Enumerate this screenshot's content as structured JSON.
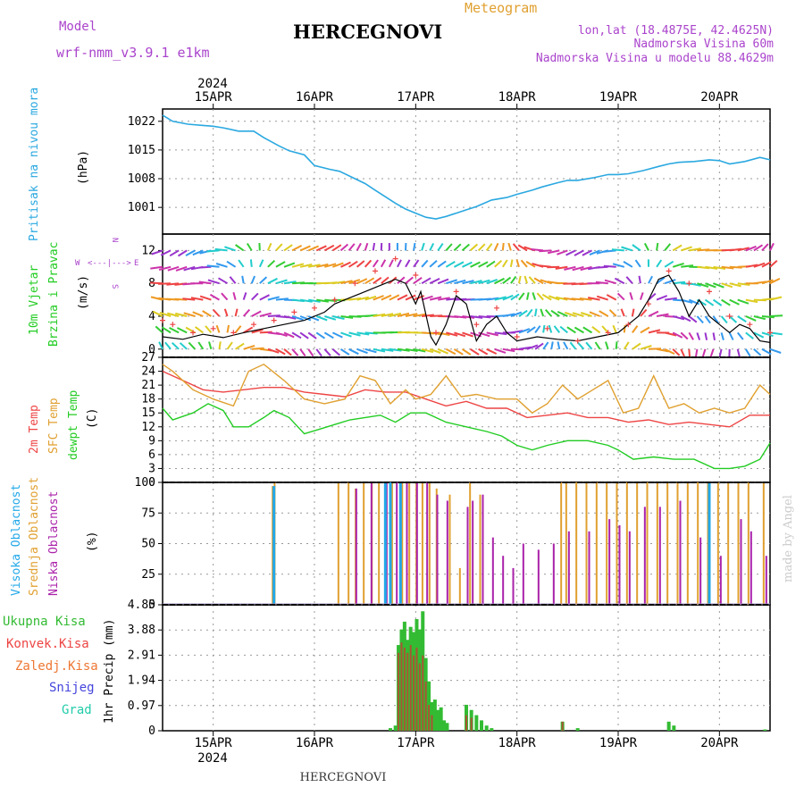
{
  "header": {
    "model_label": "Model",
    "model_name": "wrf-nmm_v3.9.1 e1km",
    "title": "HERCEGNOVI",
    "product": "Meteogram",
    "lonlat": "lon,lat (18.4875E, 42.4625N)",
    "elevation": "Nadmorska Visina 60m",
    "model_elevation": "Nadmorska Visina u modelu 88.4629m",
    "year": "2024",
    "footer_title": "HERCEGNOVI",
    "credit": "made by Angel"
  },
  "colors": {
    "pressure": "#2aa8e0",
    "wind_speed": "#000000",
    "gust": "#ee4444",
    "temp2m": "#ee4444",
    "sfc_temp": "#e0a030",
    "dewpt": "#22cc22",
    "cloud_high": "#22a8e8",
    "cloud_mid": "#e0a030",
    "cloud_low": "#aa22aa",
    "precip_total": "#33bb33",
    "precip_conv": "#ee4444",
    "precip_frozen": "#ee7733",
    "snow": "#4444dd",
    "graupel": "#22ccaa",
    "axis_label_purple": "#aa44cc"
  },
  "chart_data": [
    {
      "panel": "pressure",
      "type": "line",
      "ylabel_left": "Pritisak na nivou mora",
      "ylabel_unit": "(hPa)",
      "yticks": [
        1001,
        1008,
        1015,
        1022
      ],
      "ylim": [
        994.5,
        1025
      ],
      "x_dates": [
        "15APR",
        "16APR",
        "17APR",
        "18APR",
        "19APR",
        "20APR"
      ],
      "x_day_start": 14.5,
      "x_day_end": 20.5,
      "series": [
        {
          "x": [
            14.5,
            14.6,
            14.75,
            14.9,
            15.0,
            15.1,
            15.25,
            15.4,
            15.5,
            15.65,
            15.75,
            15.9,
            16.0,
            16.15,
            16.25,
            16.4,
            16.5,
            16.6,
            16.7,
            16.8,
            16.9,
            17.0,
            17.1,
            17.2,
            17.3,
            17.4,
            17.5,
            17.6,
            17.75,
            17.9,
            18.0,
            18.15,
            18.25,
            18.4,
            18.5,
            18.6,
            18.75,
            18.9,
            19.0,
            19.1,
            19.25,
            19.4,
            19.5,
            19.6,
            19.75,
            19.9,
            20.0,
            20.1,
            20.25,
            20.4,
            20.5
          ],
          "values": [
            1023.5,
            1022,
            1021.3,
            1021,
            1020.8,
            1020.4,
            1019.6,
            1019.6,
            1018,
            1016,
            1014.8,
            1013.8,
            1011.2,
            1010.3,
            1009.8,
            1008,
            1006.8,
            1005.2,
            1003.6,
            1002,
            1000.6,
            999.6,
            998.6,
            998.2,
            998.8,
            999.6,
            1000.4,
            1001.2,
            1002.8,
            1003.4,
            1004.2,
            1005.2,
            1006,
            1007,
            1007.6,
            1007.6,
            1008.2,
            1009,
            1009,
            1009.2,
            1010,
            1011,
            1011.6,
            1012,
            1012.2,
            1012.6,
            1012.4,
            1011.6,
            1012.2,
            1013.2,
            1012.6
          ]
        }
      ]
    },
    {
      "panel": "wind",
      "type": "line",
      "ylabel_left": "10m Vjetar",
      "ylabel_left2": "Brzina i Pravac",
      "ylabel_unit": "(m/s)",
      "compass": "N",
      "compass_w": "W",
      "compass_e": "E",
      "compass_s": "S",
      "yticks": [
        0,
        4,
        8,
        12
      ],
      "ylim": [
        -1,
        14
      ],
      "series": [
        {
          "name": "speed",
          "x": [
            14.5,
            14.7,
            14.9,
            15.1,
            15.3,
            15.5,
            15.7,
            15.9,
            16.0,
            16.1,
            16.2,
            16.3,
            16.5,
            16.6,
            16.7,
            16.8,
            16.9,
            17.0,
            17.05,
            17.15,
            17.2,
            17.3,
            17.4,
            17.5,
            17.6,
            17.7,
            17.8,
            17.9,
            18.0,
            18.2,
            18.4,
            18.6,
            18.8,
            19.0,
            19.1,
            19.2,
            19.3,
            19.4,
            19.5,
            19.6,
            19.7,
            19.8,
            19.9,
            20.0,
            20.1,
            20.2,
            20.3,
            20.4,
            20.5
          ],
          "values": [
            1.5,
            1.2,
            1.8,
            1.4,
            2.0,
            2.5,
            3.0,
            3.5,
            4.0,
            4.5,
            5.5,
            6.0,
            7.0,
            7.5,
            8.0,
            8.5,
            8.0,
            5.5,
            7.0,
            1.5,
            0.5,
            3.0,
            6.5,
            5.5,
            1.0,
            3.0,
            4.0,
            2.0,
            1.0,
            1.5,
            1.2,
            1.0,
            1.5,
            2.0,
            3.0,
            4.0,
            6.0,
            8.5,
            9.0,
            7.0,
            4.0,
            6.0,
            4.0,
            3.0,
            2.0,
            3.0,
            2.5,
            1.0,
            0.8
          ]
        },
        {
          "name": "gust",
          "x": [
            14.5,
            14.6,
            14.8,
            15.0,
            15.2,
            15.4,
            15.6,
            15.8,
            16.0,
            16.2,
            16.4,
            16.6,
            16.8,
            17.0,
            17.2,
            17.4,
            17.6,
            17.8,
            18.0,
            18.3,
            18.6,
            18.9,
            19.1,
            19.3,
            19.5,
            19.7,
            19.9,
            20.1,
            20.3,
            20.5
          ],
          "values": [
            3.5,
            3.0,
            2.0,
            2.5,
            2.0,
            3.0,
            3.5,
            4.5,
            5.0,
            6.0,
            8.0,
            9.5,
            11.0,
            9.0,
            2.0,
            7.0,
            3.0,
            5.0,
            1.5,
            2.5,
            1.0,
            2.0,
            3.0,
            5.5,
            9.5,
            8.0,
            7.0,
            4.0,
            3.0,
            2.0
          ]
        }
      ]
    },
    {
      "panel": "temperature",
      "type": "line",
      "ylabel_left": "2m Temp",
      "ylabel_left2": "SFC Temp",
      "ylabel_left3": "dewpt Temp",
      "ylabel_unit": "(C)",
      "yticks": [
        0,
        3,
        6,
        9,
        12,
        15,
        18,
        21,
        24,
        27
      ],
      "ylim": [
        0,
        27
      ],
      "series": [
        {
          "name": "2m",
          "x": [
            14.5,
            14.7,
            14.9,
            15.1,
            15.3,
            15.5,
            15.7,
            15.9,
            16.1,
            16.3,
            16.5,
            16.7,
            16.9,
            17.1,
            17.3,
            17.5,
            17.7,
            17.9,
            18.1,
            18.3,
            18.5,
            18.7,
            18.9,
            19.1,
            19.3,
            19.5,
            19.7,
            19.9,
            20.1,
            20.3,
            20.5
          ],
          "values": [
            24,
            22,
            20,
            19.5,
            20,
            20.5,
            20.5,
            19.5,
            19,
            18.5,
            20,
            19.5,
            19.5,
            18,
            16.5,
            17.5,
            16,
            16,
            14,
            14.5,
            15,
            14,
            14,
            13,
            13.5,
            12.5,
            13,
            12.5,
            12,
            14.5,
            14.5
          ]
        },
        {
          "name": "sfc",
          "x": [
            14.5,
            14.6,
            14.8,
            15.0,
            15.2,
            15.35,
            15.5,
            15.7,
            15.9,
            16.1,
            16.3,
            16.45,
            16.6,
            16.75,
            16.9,
            17.0,
            17.15,
            17.3,
            17.45,
            17.6,
            17.8,
            18.0,
            18.15,
            18.3,
            18.45,
            18.6,
            18.75,
            18.9,
            19.05,
            19.2,
            19.35,
            19.5,
            19.65,
            19.8,
            19.95,
            20.1,
            20.25,
            20.4,
            20.5
          ],
          "values": [
            25.5,
            24,
            20,
            18,
            16.5,
            24,
            25.5,
            22,
            18,
            17,
            18,
            23,
            22,
            17,
            20,
            18,
            19,
            23,
            18.5,
            19,
            18,
            18,
            15,
            17,
            21,
            18,
            20,
            22,
            15,
            16,
            23,
            16,
            17,
            15,
            16,
            15,
            16,
            21,
            19
          ]
        },
        {
          "name": "dewpt",
          "x": [
            14.5,
            14.6,
            14.8,
            14.95,
            15.1,
            15.2,
            15.35,
            15.5,
            15.6,
            15.75,
            15.9,
            16.05,
            16.2,
            16.35,
            16.5,
            16.65,
            16.8,
            16.95,
            17.1,
            17.3,
            17.5,
            17.7,
            17.85,
            18.0,
            18.15,
            18.3,
            18.5,
            18.7,
            18.9,
            19.0,
            19.15,
            19.35,
            19.55,
            19.75,
            19.95,
            20.1,
            20.25,
            20.4,
            20.5
          ],
          "values": [
            16,
            13.5,
            15,
            17,
            15.5,
            12,
            12,
            14,
            15.5,
            14,
            10.5,
            11.5,
            12.5,
            13.5,
            14,
            14.5,
            13,
            15,
            15,
            13,
            12,
            11,
            10,
            8,
            7,
            8,
            9,
            9,
            8,
            7,
            5,
            5.5,
            5,
            5,
            3,
            3,
            3.5,
            5,
            8.5
          ]
        }
      ]
    },
    {
      "panel": "clouds",
      "type": "bar",
      "ylabel_left": "Visoka Oblacnost",
      "ylabel_left2": "Srednja Oblacnost",
      "ylabel_left3": "Niska Oblacnost",
      "ylabel_unit": "(%)",
      "yticks": [
        0,
        25,
        50,
        75,
        100
      ],
      "ylim": [
        0,
        100
      ],
      "series": [
        {
          "name": "high",
          "x": [
            15.6,
            16.7,
            16.75,
            16.85,
            19.9
          ],
          "values": [
            97,
            100,
            100,
            100,
            100
          ]
        },
        {
          "name": "mid",
          "x": [
            15.6,
            15.62,
            16.25,
            16.35,
            16.42,
            16.5,
            16.58,
            16.65,
            16.72,
            16.78,
            16.88,
            16.95,
            17.02,
            17.08,
            17.15,
            17.22,
            17.35,
            17.45,
            17.55,
            17.65,
            18.45,
            18.5,
            18.6,
            18.7,
            18.8,
            18.9,
            19.0,
            19.1,
            19.2,
            19.3,
            19.4,
            19.5,
            19.6,
            19.7,
            19.8,
            19.9,
            20.0,
            20.1,
            20.2,
            20.3,
            20.45
          ],
          "values": [
            97,
            100,
            100,
            100,
            95,
            100,
            100,
            100,
            100,
            100,
            100,
            100,
            100,
            100,
            100,
            95,
            90,
            30,
            100,
            90,
            100,
            100,
            100,
            100,
            100,
            100,
            100,
            100,
            100,
            100,
            100,
            100,
            100,
            100,
            100,
            100,
            100,
            100,
            100,
            100,
            100
          ]
        },
        {
          "name": "low",
          "x": [
            16.4,
            16.55,
            16.7,
            16.8,
            16.9,
            17.0,
            17.1,
            17.2,
            17.3,
            17.5,
            17.55,
            17.65,
            17.75,
            17.85,
            17.95,
            18.05,
            18.2,
            18.35,
            18.5,
            18.7,
            18.9,
            19.0,
            19.1,
            19.25,
            19.4,
            19.6,
            19.8,
            20.0,
            20.2,
            20.3,
            20.45
          ],
          "values": [
            95,
            100,
            100,
            100,
            100,
            100,
            100,
            90,
            85,
            80,
            85,
            90,
            55,
            40,
            30,
            50,
            45,
            50,
            60,
            60,
            70,
            65,
            60,
            80,
            80,
            85,
            55,
            40,
            70,
            60,
            40
          ]
        }
      ]
    },
    {
      "panel": "precip",
      "type": "bar",
      "ylabel_left": "Ukupna Kisa",
      "ylabel_left2": "Konvek.Kisa",
      "ylabel_left3": "Zaledj.Kisa",
      "ylabel_left4": "Snijeg",
      "ylabel_left5": "Grad",
      "ylabel_unit": "1hr Precip (mm)",
      "yticks": [
        0,
        0.97,
        1.94,
        2.91,
        3.88,
        4.85
      ],
      "ylim": [
        0,
        4.85
      ],
      "series": [
        {
          "name": "total",
          "x": [
            16.75,
            16.8,
            16.83,
            16.86,
            16.89,
            16.92,
            16.95,
            16.98,
            17.01,
            17.04,
            17.07,
            17.1,
            17.13,
            17.16,
            17.19,
            17.22,
            17.25,
            17.28,
            17.31,
            17.5,
            17.55,
            17.6,
            17.65,
            17.7,
            17.75,
            18.45,
            18.6,
            19.5,
            19.55,
            20.45
          ],
          "values": [
            0.1,
            0.2,
            3.3,
            3.9,
            4.2,
            3.5,
            4.0,
            3.8,
            4.3,
            3.9,
            4.6,
            2.8,
            1.9,
            1.1,
            1.2,
            0.8,
            0.9,
            0.4,
            0.3,
            1.0,
            0.8,
            0.6,
            0.4,
            0.2,
            0.1,
            0.35,
            0.1,
            0.35,
            0.2,
            0.05
          ]
        },
        {
          "name": "conv",
          "x": [
            16.83,
            16.86,
            16.89,
            16.92,
            16.95,
            16.98,
            17.01,
            17.04,
            17.07,
            17.1,
            17.13,
            17.16,
            17.5,
            17.55,
            18.45
          ],
          "values": [
            3.0,
            3.4,
            3.2,
            3.0,
            3.3,
            2.9,
            3.2,
            2.6,
            2.9,
            1.9,
            1.0,
            0.6,
            0.6,
            0.5,
            0.35
          ]
        }
      ]
    }
  ]
}
